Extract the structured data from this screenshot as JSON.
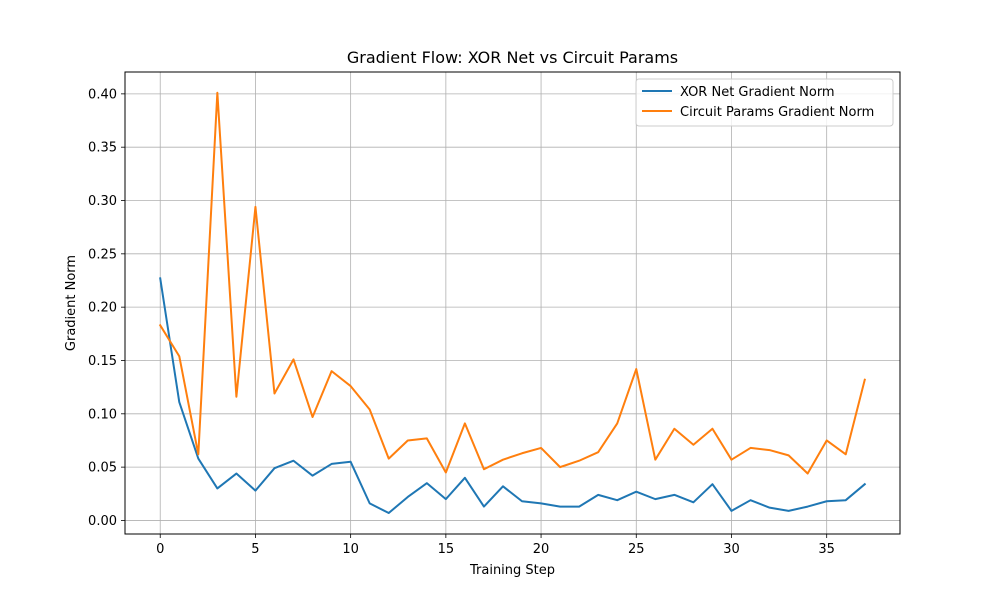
{
  "chart_data": {
    "type": "line",
    "title": "Gradient Flow: XOR Net vs Circuit Params",
    "xlabel": "Training Step",
    "ylabel": "Gradient Norm",
    "xlim": [
      -1.85,
      38.85
    ],
    "ylim": [
      -0.0127,
      0.4205
    ],
    "xticks": [
      0,
      5,
      10,
      15,
      20,
      25,
      30,
      35
    ],
    "xtick_labels": [
      "0",
      "5",
      "10",
      "15",
      "20",
      "25",
      "30",
      "35"
    ],
    "yticks": [
      0.0,
      0.05,
      0.1,
      0.15,
      0.2,
      0.25,
      0.3,
      0.35,
      0.4
    ],
    "ytick_labels": [
      "0.00",
      "0.05",
      "0.10",
      "0.15",
      "0.20",
      "0.25",
      "0.30",
      "0.35",
      "0.40"
    ],
    "grid": true,
    "legend_position": "upper right",
    "x": [
      0,
      1,
      2,
      3,
      4,
      5,
      6,
      7,
      8,
      9,
      10,
      11,
      12,
      13,
      14,
      15,
      16,
      17,
      18,
      19,
      20,
      21,
      22,
      23,
      24,
      25,
      26,
      27,
      28,
      29,
      30,
      31,
      32,
      33,
      34,
      35,
      36,
      37
    ],
    "series": [
      {
        "name": "XOR Net Gradient Norm",
        "color": "#1f77b4",
        "values": [
          0.227,
          0.111,
          0.058,
          0.03,
          0.044,
          0.028,
          0.049,
          0.056,
          0.042,
          0.053,
          0.055,
          0.016,
          0.007,
          0.022,
          0.035,
          0.02,
          0.04,
          0.013,
          0.032,
          0.018,
          0.016,
          0.013,
          0.013,
          0.024,
          0.019,
          0.027,
          0.02,
          0.024,
          0.017,
          0.034,
          0.009,
          0.019,
          0.012,
          0.009,
          0.013,
          0.018,
          0.019,
          0.034
        ]
      },
      {
        "name": "Circuit Params Gradient Norm",
        "color": "#ff7f0e",
        "values": [
          0.183,
          0.154,
          0.062,
          0.401,
          0.116,
          0.294,
          0.119,
          0.151,
          0.097,
          0.14,
          0.126,
          0.104,
          0.058,
          0.075,
          0.077,
          0.045,
          0.091,
          0.048,
          0.057,
          0.063,
          0.068,
          0.05,
          0.056,
          0.064,
          0.091,
          0.142,
          0.057,
          0.086,
          0.071,
          0.086,
          0.057,
          0.068,
          0.066,
          0.061,
          0.044,
          0.075,
          0.062,
          0.132
        ]
      }
    ]
  }
}
